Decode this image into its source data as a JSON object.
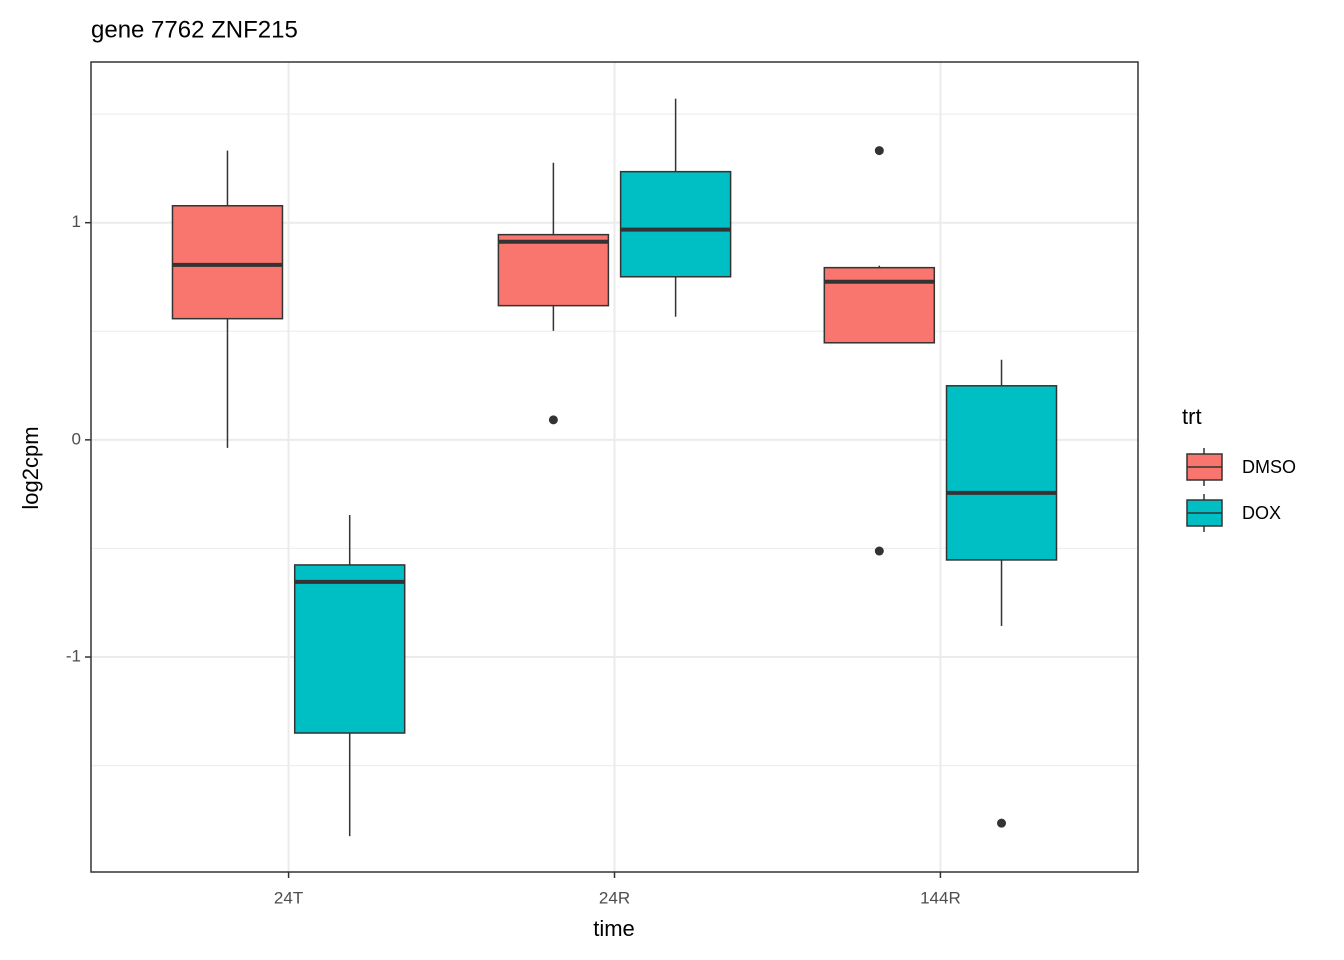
{
  "chart_data": {
    "type": "box",
    "title": "gene 7762 ZNF215",
    "x_label": "time",
    "y_label": "log2cpm",
    "categories": [
      "24T",
      "24R",
      "144R"
    ],
    "ylim": [
      -1.99,
      1.74
    ],
    "yticks": [
      -1,
      0,
      1
    ],
    "yminor": [
      -1.5,
      -0.5,
      0.5,
      1.5
    ],
    "grid": true,
    "legend_title": "trt",
    "legend_position": "right",
    "series": [
      {
        "name": "DMSO",
        "color": "#F8766D",
        "whisker_low": [
          -0.037,
          0.502,
          0.447
        ],
        "q1": [
          0.558,
          0.618,
          0.447
        ],
        "median": [
          0.806,
          0.912,
          0.728
        ],
        "q3": [
          1.078,
          0.945,
          0.793
        ],
        "whisker_high": [
          1.332,
          1.276,
          0.802
        ],
        "outliers": [
          [],
          [
            0.092
          ],
          [
            1.332,
            -0.512
          ]
        ]
      },
      {
        "name": "DOX",
        "color": "#00BFC4",
        "whisker_low": [
          -1.825,
          0.567,
          -0.857
        ],
        "q1": [
          -1.35,
          0.751,
          -0.553
        ],
        "median": [
          -0.654,
          0.968,
          -0.244
        ],
        "q3": [
          -0.576,
          1.235,
          0.249
        ],
        "whisker_high": [
          -0.346,
          1.571,
          0.369
        ],
        "outliers": [
          [],
          [],
          [
            -1.765
          ]
        ]
      }
    ]
  }
}
